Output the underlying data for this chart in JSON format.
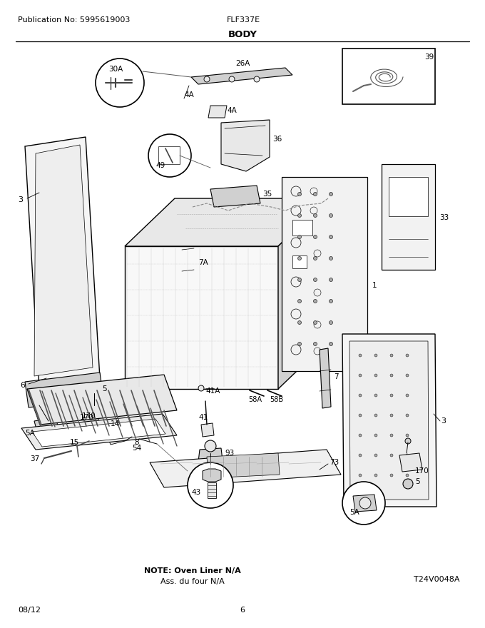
{
  "title": "BODY",
  "pub_no": "Publication No: 5995619003",
  "model": "FLF337E",
  "date": "08/12",
  "page": "6",
  "note_line1": "NOTE: Oven Liner N/A",
  "note_line2": "Ass. du four N/A",
  "diagram_id": "T24V0048A",
  "bg_color": "#ffffff",
  "lc": "#000000",
  "gray1": "#e8e8e8",
  "gray2": "#d0d0d0",
  "gray3": "#b8b8b8",
  "fig_w": 6.8,
  "fig_h": 8.8,
  "dpi": 100
}
